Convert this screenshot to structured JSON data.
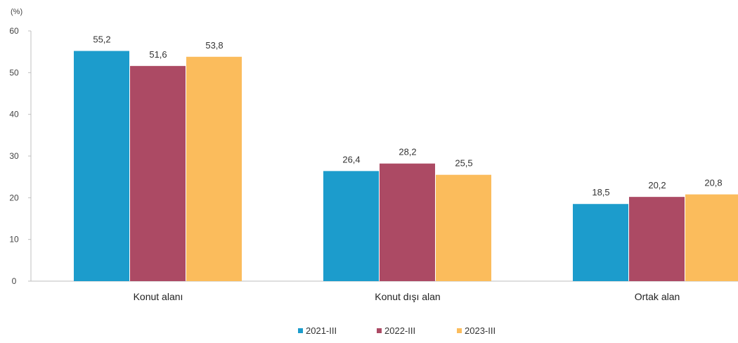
{
  "chart_data": {
    "type": "bar",
    "unit_label": "(%)",
    "categories": [
      "Konut alanı",
      "Konut dışı alan",
      "Ortak alan"
    ],
    "series": [
      {
        "name": "2021-III",
        "color": "#1c9ccc",
        "values": [
          55.2,
          26.4,
          18.5
        ],
        "labels": [
          "55,2",
          "26,4",
          "18,5"
        ]
      },
      {
        "name": "2022-III",
        "color": "#ac4a64",
        "values": [
          51.6,
          28.2,
          20.2
        ],
        "labels": [
          "51,6",
          "28,2",
          "20,2"
        ]
      },
      {
        "name": "2023-III",
        "color": "#fbbc5c",
        "values": [
          53.8,
          25.5,
          20.8
        ],
        "labels": [
          "53,8",
          "25,5",
          "20,8"
        ]
      }
    ],
    "ylim": [
      0,
      60
    ],
    "yticks": [
      "0",
      "10",
      "20",
      "30",
      "40",
      "50",
      "60"
    ],
    "grid": false,
    "legend_position": "bottom"
  }
}
